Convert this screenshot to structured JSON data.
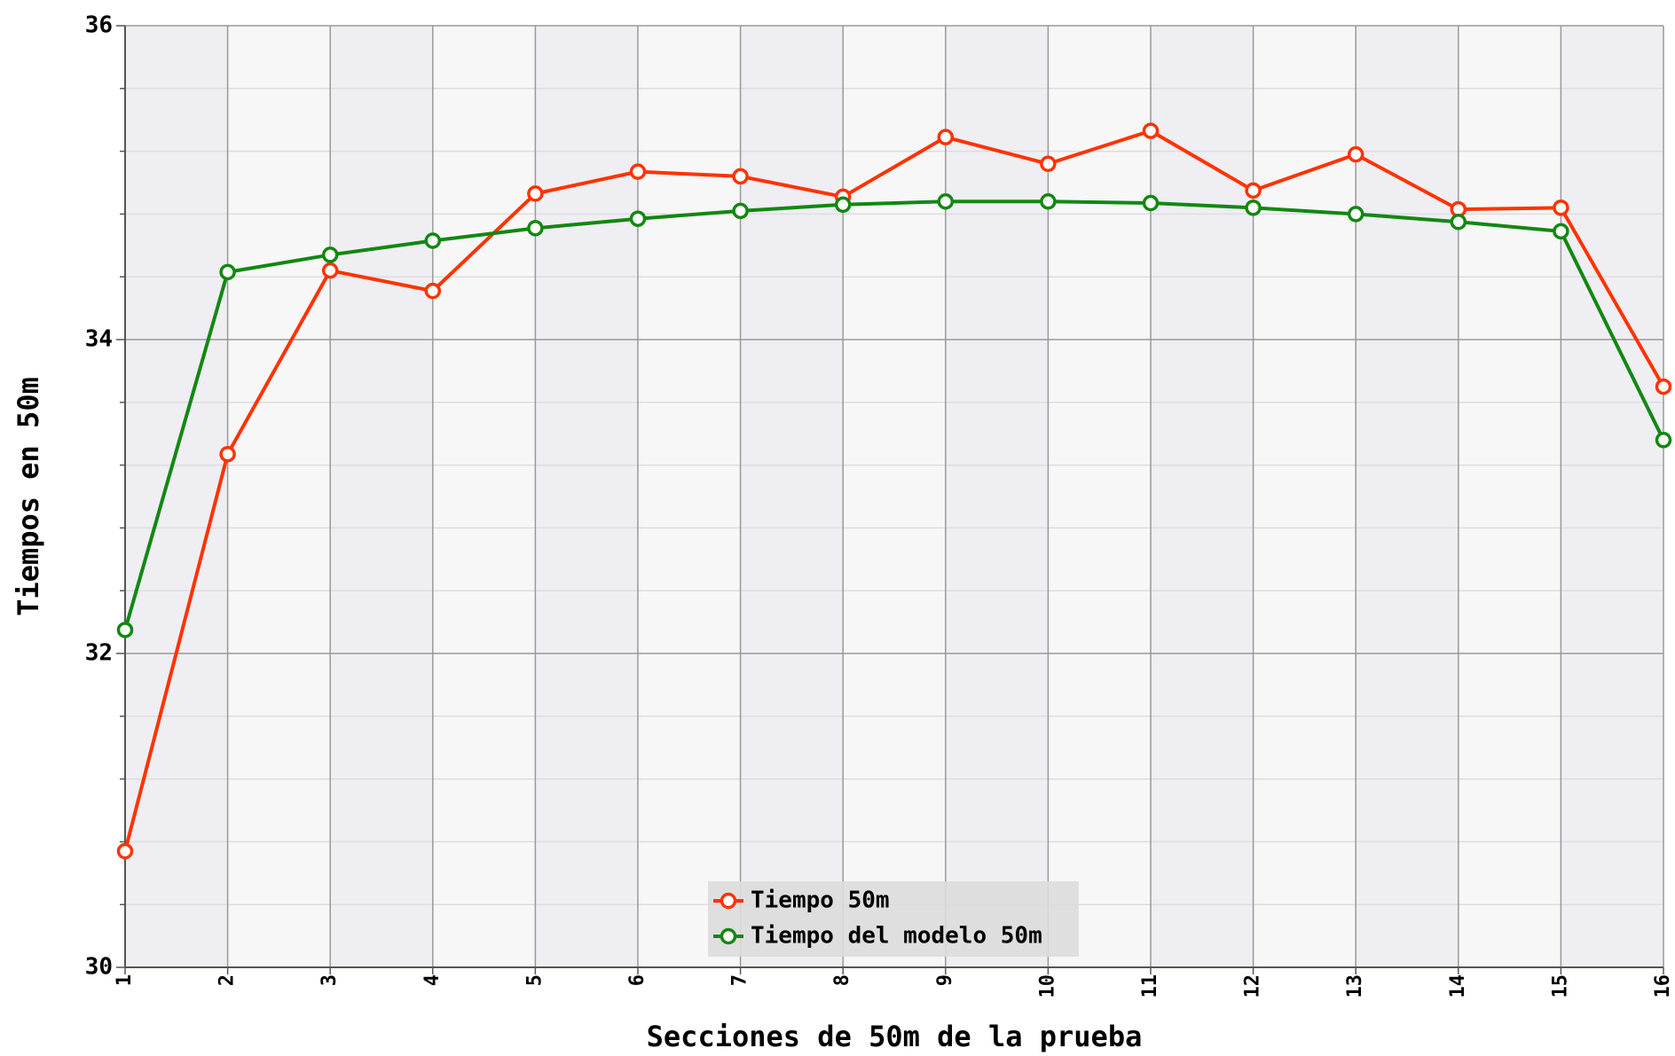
{
  "chart_data": {
    "type": "line",
    "x_label": "Secciones de 50m de la prueba",
    "y_label": "Tiempos en 50m",
    "x": [
      1,
      2,
      3,
      4,
      5,
      6,
      7,
      8,
      9,
      10,
      11,
      12,
      13,
      14,
      15,
      16
    ],
    "series": [
      {
        "name": "Tiempo 50m",
        "color": "#ff3300",
        "values": [
          30.74,
          33.27,
          34.44,
          34.31,
          34.93,
          35.07,
          35.04,
          34.91,
          35.29,
          35.12,
          35.33,
          34.95,
          35.18,
          34.83,
          34.84,
          33.7
        ]
      },
      {
        "name": "Tiempo del modelo 50m",
        "color": "#118811",
        "values": [
          32.15,
          34.43,
          34.54,
          34.63,
          34.71,
          34.77,
          34.82,
          34.86,
          34.88,
          34.88,
          34.87,
          34.84,
          34.8,
          34.75,
          34.69,
          33.36
        ]
      }
    ],
    "xlim": [
      1,
      16
    ],
    "xticks": [
      1,
      2,
      3,
      4,
      5,
      6,
      7,
      8,
      9,
      10,
      11,
      12,
      13,
      14,
      15,
      16
    ],
    "ylim": [
      30,
      36
    ],
    "yticks": [
      30,
      32,
      34,
      36
    ],
    "minor_yticks": [
      30.4,
      30.8,
      31.2,
      31.6,
      32.4,
      32.8,
      33.2,
      33.6,
      34.4,
      34.8,
      35.2,
      35.6
    ],
    "grid": true,
    "legend": "bottom"
  }
}
